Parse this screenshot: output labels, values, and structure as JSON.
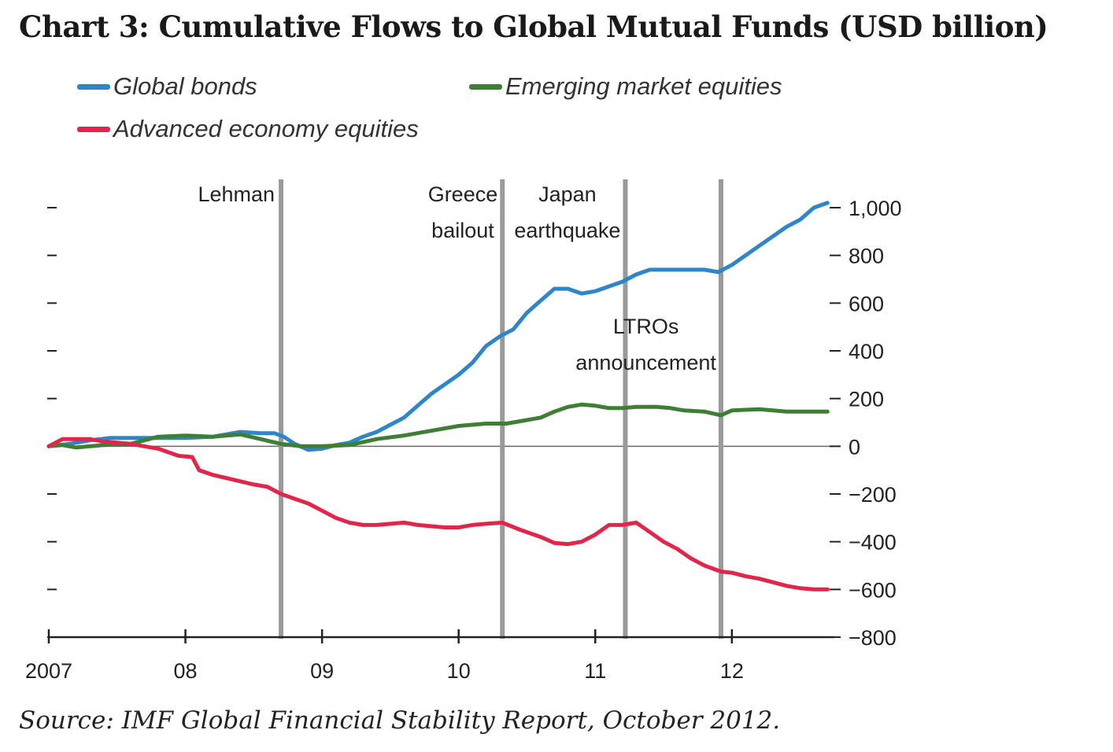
{
  "title": "Chart 3:  Cumulative Flows to Global Mutual Funds (USD billion)",
  "source": "Source:  IMF Global Financial Stability Report, October 2012.",
  "colors": {
    "global_bonds": "#2e86c9",
    "em_equities": "#3f7f35",
    "ae_equities": "#e0264a",
    "event_line": "#9a9a9a",
    "axis": "#222222"
  },
  "legend": [
    {
      "label": "Global bonds",
      "series": "global_bonds"
    },
    {
      "label": "Emerging market equities",
      "series": "em_equities"
    },
    {
      "label": "Advanced economy equities",
      "series": "ae_equities"
    }
  ],
  "chart_data": {
    "type": "line",
    "title": "Chart 3:  Cumulative Flows to Global Mutual Funds (USD billion)",
    "xlabel": "",
    "ylabel": "",
    "xlim": [
      2007.0,
      2012.75
    ],
    "ylim": [
      -800,
      1000
    ],
    "x_ticks": [
      {
        "value": 2007,
        "label": "2007"
      },
      {
        "value": 2008,
        "label": "08"
      },
      {
        "value": 2009,
        "label": "09"
      },
      {
        "value": 2010,
        "label": "10"
      },
      {
        "value": 2011,
        "label": "11"
      },
      {
        "value": 2012,
        "label": "12"
      }
    ],
    "y_ticks": [
      {
        "value": 1000,
        "label": "1,000"
      },
      {
        "value": 800,
        "label": "800"
      },
      {
        "value": 600,
        "label": "600"
      },
      {
        "value": 400,
        "label": "400"
      },
      {
        "value": 200,
        "label": "200"
      },
      {
        "value": 0,
        "label": "0"
      },
      {
        "value": -200,
        "label": "−200"
      },
      {
        "value": -400,
        "label": "−400"
      },
      {
        "value": -600,
        "label": "−600"
      },
      {
        "value": -800,
        "label": "−800"
      }
    ],
    "events": [
      {
        "x": 2008.7,
        "lines": [
          "Lehman"
        ]
      },
      {
        "x": 2010.32,
        "lines": [
          "Greece",
          "bailout"
        ]
      },
      {
        "x": 2011.22,
        "lines": [
          "Japan",
          "earthquake"
        ]
      },
      {
        "x": 2011.92,
        "lines": [
          "LTROs",
          "announcement"
        ]
      }
    ],
    "series": [
      {
        "name": "Global bonds",
        "key": "global_bonds",
        "x": [
          2007.0,
          2007.15,
          2007.3,
          2007.45,
          2007.6,
          2007.8,
          2008.0,
          2008.2,
          2008.4,
          2008.55,
          2008.65,
          2008.72,
          2008.8,
          2008.9,
          2009.0,
          2009.1,
          2009.2,
          2009.3,
          2009.4,
          2009.5,
          2009.6,
          2009.7,
          2009.8,
          2009.9,
          2010.0,
          2010.1,
          2010.2,
          2010.3,
          2010.4,
          2010.5,
          2010.6,
          2010.7,
          2010.8,
          2010.9,
          2011.0,
          2011.1,
          2011.2,
          2011.3,
          2011.4,
          2011.5,
          2011.6,
          2011.7,
          2011.8,
          2011.9,
          2012.0,
          2012.1,
          2012.2,
          2012.3,
          2012.4,
          2012.5,
          2012.6,
          2012.7
        ],
        "values": [
          0,
          10,
          25,
          35,
          35,
          35,
          35,
          40,
          60,
          55,
          55,
          40,
          10,
          -15,
          -10,
          5,
          15,
          40,
          60,
          90,
          120,
          170,
          220,
          260,
          300,
          350,
          420,
          460,
          490,
          560,
          610,
          660,
          660,
          640,
          650,
          670,
          690,
          720,
          740,
          740,
          740,
          740,
          740,
          730,
          760,
          800,
          840,
          880,
          920,
          950,
          1000,
          1020
        ]
      },
      {
        "name": "Emerging market equities",
        "key": "em_equities",
        "x": [
          2007.0,
          2007.1,
          2007.2,
          2007.4,
          2007.6,
          2007.8,
          2008.0,
          2008.2,
          2008.4,
          2008.55,
          2008.7,
          2008.85,
          2009.0,
          2009.2,
          2009.4,
          2009.6,
          2009.8,
          2010.0,
          2010.2,
          2010.35,
          2010.5,
          2010.6,
          2010.7,
          2010.8,
          2010.9,
          2011.0,
          2011.1,
          2011.2,
          2011.3,
          2011.45,
          2011.55,
          2011.65,
          2011.8,
          2011.92,
          2012.0,
          2012.2,
          2012.4,
          2012.6,
          2012.7
        ],
        "values": [
          0,
          5,
          -5,
          5,
          10,
          40,
          45,
          40,
          50,
          30,
          10,
          0,
          0,
          5,
          30,
          45,
          65,
          85,
          95,
          95,
          110,
          120,
          145,
          165,
          175,
          170,
          160,
          160,
          165,
          165,
          160,
          150,
          145,
          130,
          150,
          155,
          145,
          145,
          145
        ]
      },
      {
        "name": "Advanced economy equities",
        "key": "ae_equities",
        "x": [
          2007.0,
          2007.1,
          2007.2,
          2007.3,
          2007.4,
          2007.6,
          2007.8,
          2007.95,
          2008.05,
          2008.1,
          2008.2,
          2008.35,
          2008.5,
          2008.6,
          2008.7,
          2008.8,
          2008.9,
          2009.0,
          2009.1,
          2009.2,
          2009.3,
          2009.4,
          2009.5,
          2009.6,
          2009.7,
          2009.8,
          2009.9,
          2010.0,
          2010.1,
          2010.2,
          2010.32,
          2010.45,
          2010.6,
          2010.7,
          2010.8,
          2010.9,
          2011.0,
          2011.1,
          2011.2,
          2011.3,
          2011.4,
          2011.5,
          2011.6,
          2011.7,
          2011.8,
          2011.92,
          2012.0,
          2012.1,
          2012.2,
          2012.3,
          2012.4,
          2012.5,
          2012.6,
          2012.7
        ],
        "values": [
          0,
          30,
          30,
          30,
          20,
          10,
          -10,
          -40,
          -45,
          -100,
          -120,
          -140,
          -160,
          -170,
          -200,
          -220,
          -240,
          -270,
          -300,
          -320,
          -330,
          -330,
          -325,
          -320,
          -330,
          -335,
          -340,
          -340,
          -330,
          -325,
          -320,
          -350,
          -380,
          -405,
          -410,
          -400,
          -370,
          -330,
          -330,
          -320,
          -360,
          -400,
          -430,
          -470,
          -500,
          -525,
          -530,
          -545,
          -555,
          -570,
          -585,
          -595,
          -600,
          -600
        ]
      }
    ]
  }
}
